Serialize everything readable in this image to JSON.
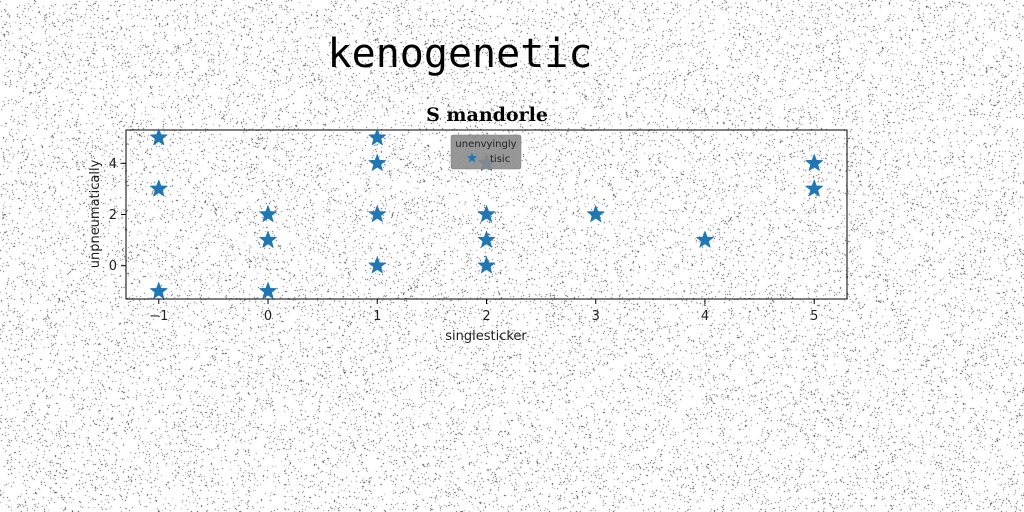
{
  "page": {
    "heading": "kenogenetic"
  },
  "colors": {
    "marker": "#1f77b4",
    "legend_bg": "#8c8c8c",
    "axes": "#000000"
  },
  "chart_data": {
    "type": "scatter",
    "title": "S mandorle",
    "xlabel": "singlesticker",
    "ylabel": "unpneumatically",
    "xlim": [
      -1.3,
      5.3
    ],
    "ylim": [
      -1.3,
      5.3
    ],
    "xticks": [
      -1,
      0,
      1,
      2,
      3,
      4,
      5
    ],
    "xtick_labels": [
      "−1",
      "0",
      "1",
      "2",
      "3",
      "4",
      "5"
    ],
    "yticks": [
      0,
      2,
      4
    ],
    "ytick_labels": [
      "0",
      "2",
      "4"
    ],
    "grid": false,
    "legend": {
      "title": "unenvyingly",
      "placement": "top-center",
      "entries": [
        "tisic"
      ]
    },
    "marker": "star",
    "series": [
      {
        "name": "tisic",
        "x": [
          -1,
          -1,
          -1,
          0,
          0,
          0,
          1,
          1,
          1,
          1,
          2,
          2,
          2,
          2,
          3,
          4,
          5,
          5
        ],
        "y": [
          5,
          3,
          -1,
          2,
          1,
          -1,
          5,
          4,
          2,
          0,
          4,
          2,
          1,
          0,
          2,
          1,
          4,
          3
        ]
      }
    ]
  }
}
